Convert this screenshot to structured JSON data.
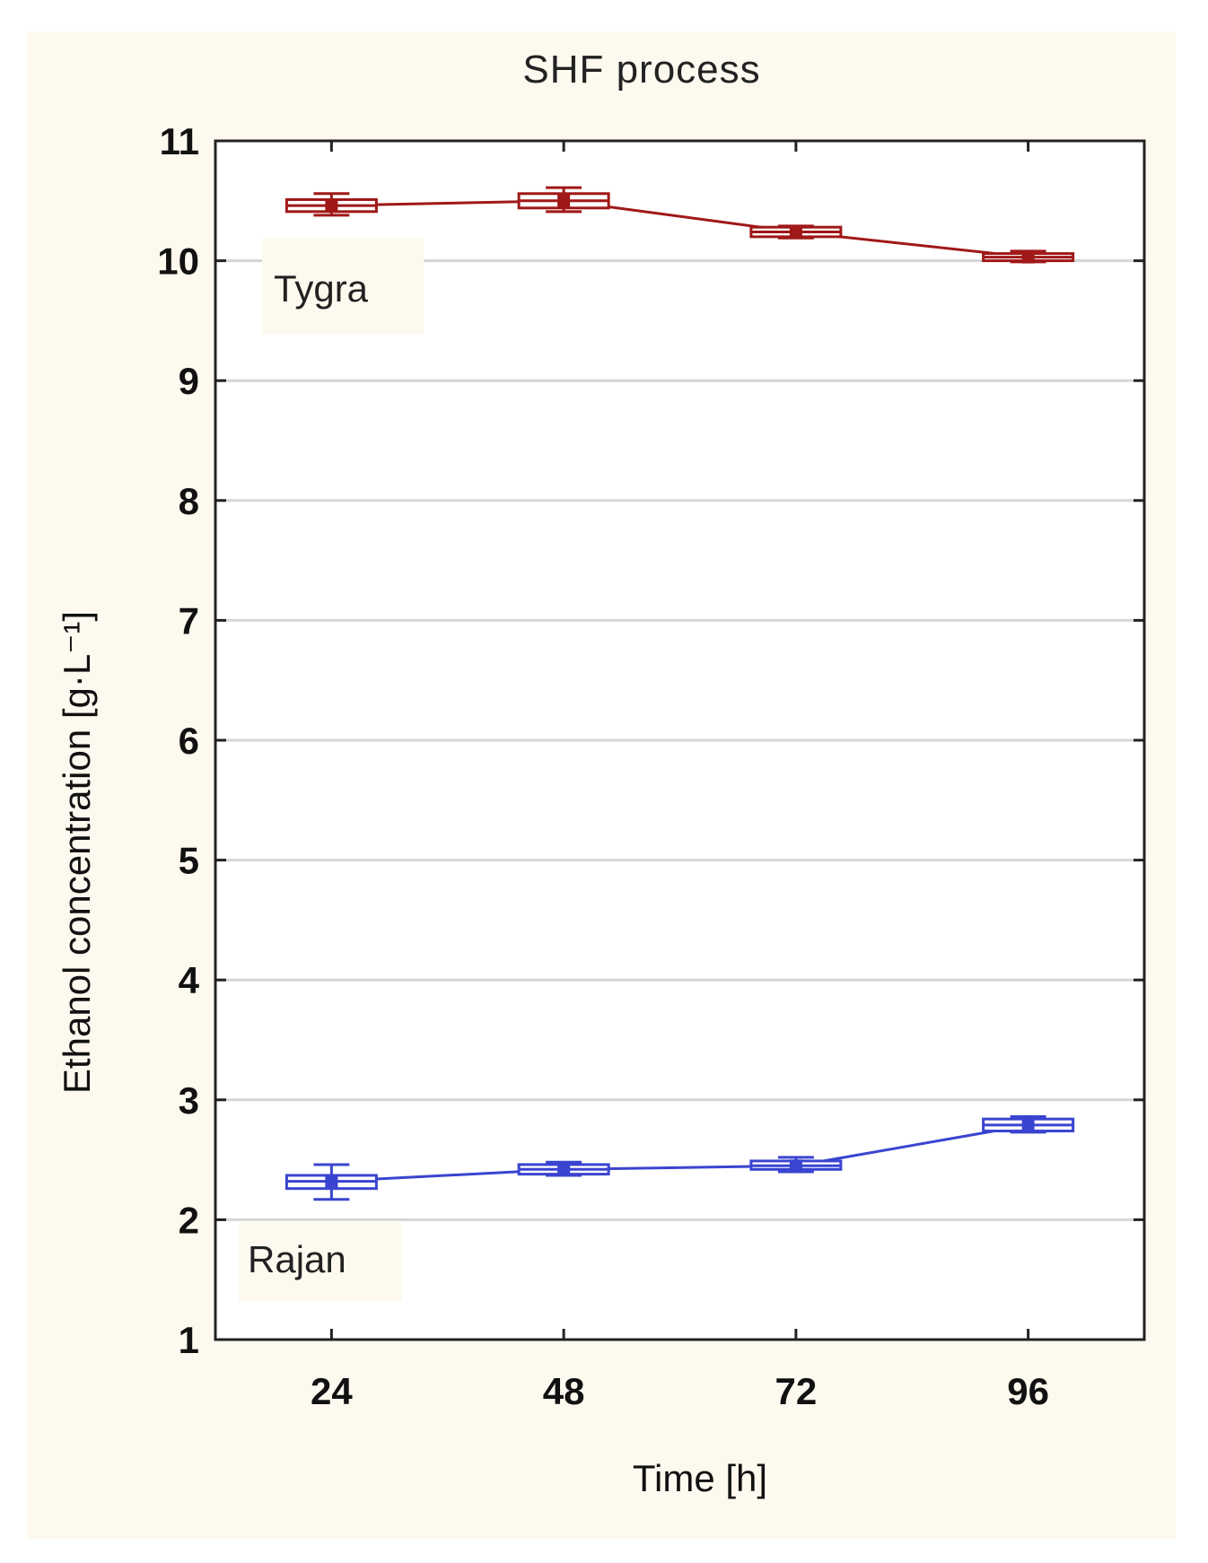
{
  "chart_data": {
    "type": "line",
    "title": "SHF process",
    "xlabel": "Time [h]",
    "ylabel": "Ethanol concentration [g·L⁻¹]",
    "x_tick_labels": [
      "24",
      "48",
      "72",
      "96"
    ],
    "x": [
      24,
      48,
      72,
      96
    ],
    "xlim": [
      12,
      108
    ],
    "ylim": [
      1,
      11
    ],
    "y_ticks": [
      1,
      2,
      3,
      4,
      5,
      6,
      7,
      8,
      9,
      10,
      11
    ],
    "grid": true,
    "series": [
      {
        "name": "Tygra",
        "color": "#a01818",
        "values": [
          10.46,
          10.5,
          10.24,
          10.03
        ],
        "box_low": [
          10.41,
          10.44,
          10.2,
          10.0
        ],
        "box_high": [
          10.51,
          10.56,
          10.28,
          10.06
        ],
        "whisker_low": [
          10.38,
          10.41,
          10.19,
          9.99
        ],
        "whisker_high": [
          10.56,
          10.61,
          10.29,
          10.08
        ]
      },
      {
        "name": "Rajan",
        "color": "#3a44d0",
        "values": [
          2.32,
          2.42,
          2.45,
          2.79
        ],
        "box_low": [
          2.26,
          2.38,
          2.42,
          2.74
        ],
        "box_high": [
          2.37,
          2.46,
          2.49,
          2.84
        ],
        "whisker_low": [
          2.17,
          2.37,
          2.4,
          2.73
        ],
        "whisker_high": [
          2.46,
          2.48,
          2.52,
          2.86
        ]
      }
    ]
  }
}
